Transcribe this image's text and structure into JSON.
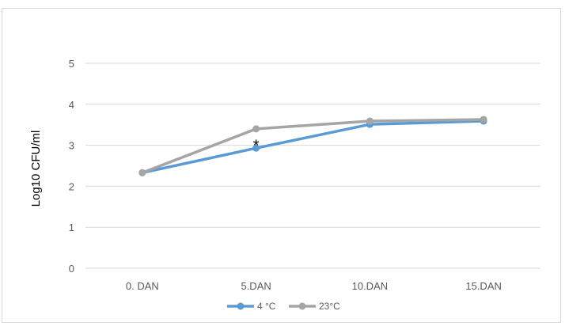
{
  "chart_data": {
    "type": "line",
    "title": "",
    "xlabel": "",
    "ylabel": "Log10 CFU/ml",
    "categories": [
      "0. DAN",
      "5.DAN",
      "10.DAN",
      "15.DAN"
    ],
    "ylim": [
      0,
      5
    ],
    "yticks": [
      "0",
      "1",
      "2",
      "3",
      "4",
      "5"
    ],
    "grid": true,
    "legend_position": "bottom",
    "series": [
      {
        "name": "4 °C",
        "values": [
          2.33,
          2.93,
          3.51,
          3.59
        ],
        "color": "#5b9bd5"
      },
      {
        "name": "23°C",
        "values": [
          2.33,
          3.4,
          3.59,
          3.63
        ],
        "color": "#a5a5a5"
      }
    ],
    "annotations": [
      {
        "text": "*",
        "category_index": 1,
        "y": 3.1
      }
    ]
  }
}
